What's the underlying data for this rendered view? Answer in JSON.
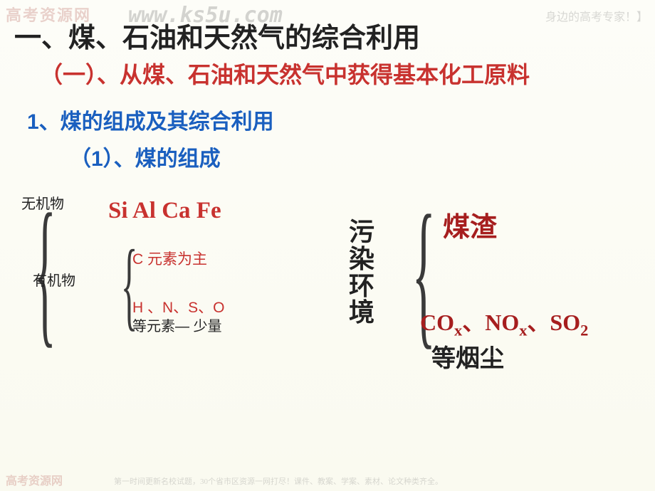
{
  "watermark": {
    "top_logo": "高考资源网",
    "top_url": "www.ks5u.com",
    "top_tag": "身边的高考专家！】",
    "bottom_logo": "高考资源网",
    "bottom_text": "第一时间更新名校试题，30个省市区资源一网打尽！课件、教案、学案、素材、论文种类齐全。"
  },
  "headings": {
    "main": "一、煤、石油和天然气的综合利用",
    "section1": "（一）、从煤、石油和天然气中获得基本化工原料",
    "sub1": "1、煤的组成及其综合利用",
    "sub1_1": "（1）、煤的组成"
  },
  "labels": {
    "inorganic": "无机物",
    "organic": "有机物",
    "elements": "Si  Al  Ca  Fe",
    "c_main": "C 元素为主",
    "hnso": "H 、N、S、O",
    "minor": "等元素— 少量",
    "pollute": "污染环境",
    "slag": "煤渣",
    "gases_html": "CO<sub>x</sub>、NO<sub>x</sub>、SO<sub>2</sub>",
    "smoke": "等烟尘"
  },
  "styles": {
    "title_main": {
      "color": "#222222",
      "fontsize": 38
    },
    "section1": {
      "color": "#c8322f",
      "fontsize": 32
    },
    "sub1": {
      "color": "#1a5fbf",
      "fontsize": 30
    },
    "sub1_1": {
      "color": "#1a5fbf",
      "fontsize": 30
    },
    "inorganic": {
      "color": "#222222",
      "fontsize": 20
    },
    "organic": {
      "color": "#222222",
      "fontsize": 20
    },
    "elements": {
      "color": "#c8322f",
      "fontsize": 33
    },
    "c_main": {
      "color": "#c8322f",
      "fontsize": 21
    },
    "hnso": {
      "color": "#c8322f",
      "fontsize": 21
    },
    "minor": {
      "color": "#222222",
      "fontsize": 20
    },
    "pollute": {
      "color": "#222222",
      "fontsize": 36
    },
    "slag": {
      "color": "#a61e1e",
      "fontsize": 38
    },
    "gases": {
      "color": "#a61e1e",
      "fontsize": 32
    },
    "smoke": {
      "color": "#222222",
      "fontsize": 34
    }
  }
}
